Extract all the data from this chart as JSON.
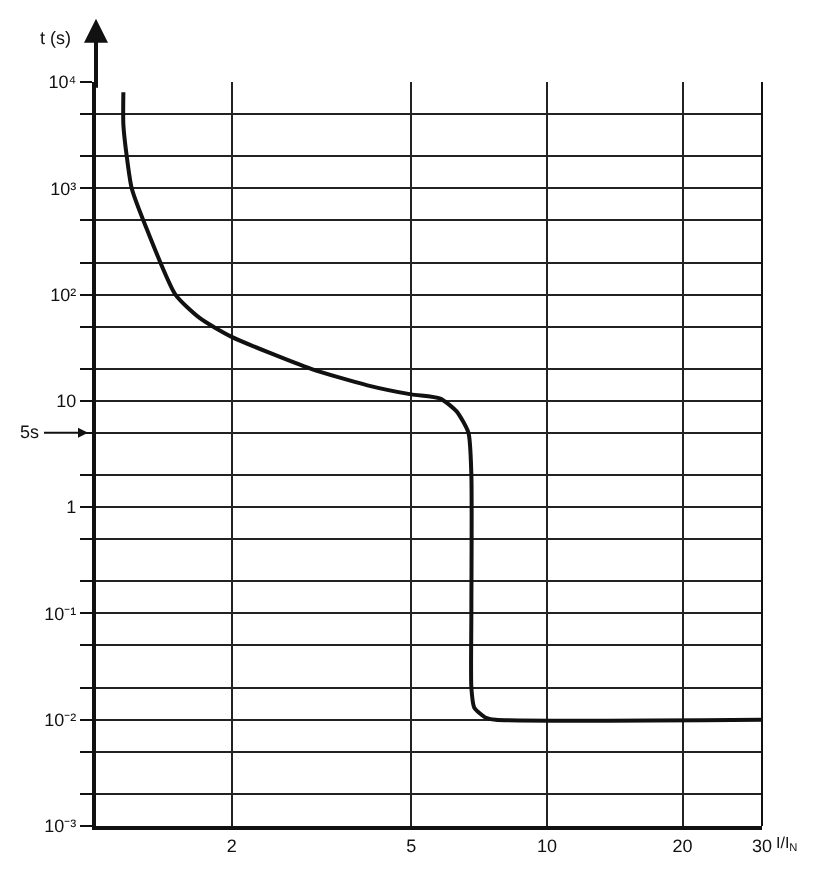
{
  "chart_data": {
    "type": "line",
    "xlabel": "I/I$_{N}$",
    "ylabel": "t (s)",
    "x": [
      1.15,
      1.15,
      1.17,
      1.2,
      1.3,
      1.5,
      1.7,
      2,
      3,
      4,
      5,
      5.8,
      6.3,
      6.7,
      6.8,
      6.8,
      6.8,
      6.9,
      7.3,
      7.7,
      30
    ],
    "series": [
      {
        "color": "#111111",
        "values": [
          8000,
          4000,
          2000,
          1000,
          400,
          100,
          60,
          40,
          20,
          14,
          11.5,
          10.5,
          8,
          5,
          2,
          0.1,
          0.02,
          0.013,
          0.0105,
          0.01,
          0.01
        ]
      }
    ],
    "log": "xy",
    "xlim": [
      1,
      30
    ],
    "ylim": [
      0.001,
      10000
    ],
    "xticks": [
      2,
      5,
      10,
      20,
      30
    ],
    "yticks": [
      {
        "value": 10000,
        "label": "10⁴"
      },
      {
        "value": 5000,
        "label": null
      },
      {
        "value": 2000,
        "label": null
      },
      {
        "value": 1000,
        "label": "10³"
      },
      {
        "value": 500,
        "label": null
      },
      {
        "value": 200,
        "label": null
      },
      {
        "value": 100,
        "label": "10²"
      },
      {
        "value": 50,
        "label": null
      },
      {
        "value": 20,
        "label": null
      },
      {
        "value": 10,
        "label": "10"
      },
      {
        "value": 5,
        "label": null
      },
      {
        "value": 2,
        "label": null
      },
      {
        "value": 1,
        "label": "1"
      },
      {
        "value": 0.5,
        "label": null
      },
      {
        "value": 0.2,
        "label": null
      },
      {
        "value": 0.1,
        "label": "10⁻¹"
      },
      {
        "value": 0.05,
        "label": null
      },
      {
        "value": 0.02,
        "label": null
      },
      {
        "value": 0.01,
        "label": "10⁻²"
      },
      {
        "value": 0.005,
        "label": null
      },
      {
        "value": 0.002,
        "label": null
      },
      {
        "value": 0.001,
        "label": "10⁻³"
      }
    ],
    "ref_lines": [
      {
        "axis": "y",
        "value": 5,
        "label": "5s"
      }
    ],
    "grid": true,
    "marker": "none",
    "line_style": "solid"
  }
}
